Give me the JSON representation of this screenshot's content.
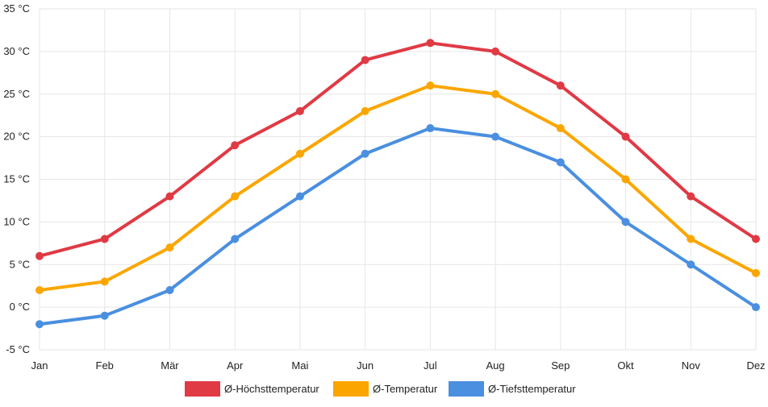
{
  "chart_data": {
    "type": "line",
    "title": "",
    "xlabel": "",
    "ylabel": "",
    "categories": [
      "Jan",
      "Feb",
      "Mär",
      "Apr",
      "Mai",
      "Jun",
      "Jul",
      "Aug",
      "Sep",
      "Okt",
      "Nov",
      "Dez"
    ],
    "ylim": [
      -5,
      35
    ],
    "yticks": [
      -5,
      0,
      5,
      10,
      15,
      20,
      25,
      30,
      35
    ],
    "yunit": " °C",
    "grid": true,
    "legend_position": "bottom",
    "series": [
      {
        "name": "Ø-Höchsttemperatur",
        "color": "#e03a45",
        "values": [
          6,
          8,
          13,
          19,
          23,
          29,
          31,
          30,
          26,
          20,
          13,
          8
        ]
      },
      {
        "name": "Ø-Temperatur",
        "color": "#fba600",
        "values": [
          2,
          3,
          7,
          13,
          18,
          23,
          26,
          25,
          21,
          15,
          8,
          4
        ]
      },
      {
        "name": "Ø-Tiefsttemperatur",
        "color": "#4a8fe0",
        "values": [
          -2,
          -1,
          2,
          8,
          13,
          18,
          21,
          20,
          17,
          10,
          5,
          0
        ]
      }
    ]
  }
}
